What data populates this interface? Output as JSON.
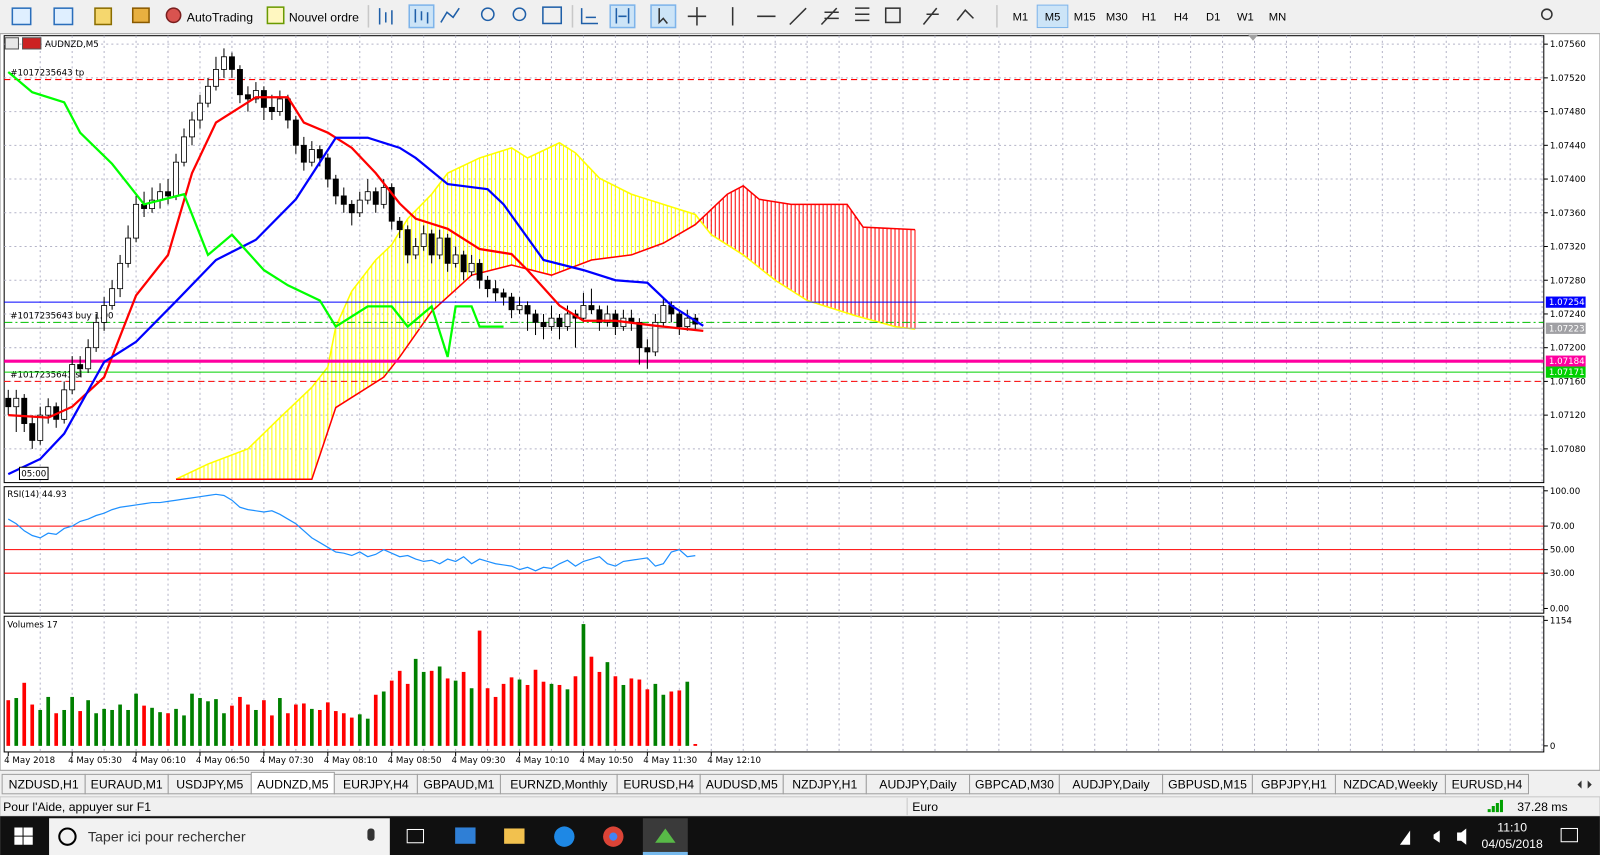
{
  "toolbar": {
    "buttons": [
      "AutoTrading",
      "Nouvel ordre"
    ],
    "timeframes": [
      "M1",
      "M5",
      "M15",
      "M30",
      "H1",
      "H4",
      "D1",
      "W1",
      "MN"
    ],
    "active_timeframe": "M5"
  },
  "chart": {
    "title": "AUDNZD,M5",
    "corner_time": "05:00",
    "ylim": [
      1.0704,
      1.0757
    ],
    "yticks": [
      {
        "value": 1.0756,
        "label": "1.07560"
      },
      {
        "value": 1.0752,
        "label": "1.07520"
      },
      {
        "value": 1.0748,
        "label": "1.07480"
      },
      {
        "value": 1.0744,
        "label": "1.07440"
      },
      {
        "value": 1.074,
        "label": "1.07400"
      },
      {
        "value": 1.0736,
        "label": "1.07360"
      },
      {
        "value": 1.0732,
        "label": "1.07320"
      },
      {
        "value": 1.0728,
        "label": "1.07280"
      },
      {
        "value": 1.0724,
        "label": "1.07240"
      },
      {
        "value": 1.072,
        "label": "1.07200"
      },
      {
        "value": 1.0716,
        "label": "1.07160"
      },
      {
        "value": 1.0712,
        "label": "1.07120"
      },
      {
        "value": 1.0708,
        "label": "1.07080"
      }
    ],
    "grid": true,
    "candles": [
      [
        1.0714,
        1.0715,
        1.0712,
        1.0713
      ],
      [
        1.0713,
        1.0715,
        1.071,
        1.0714
      ],
      [
        1.0714,
        1.07145,
        1.071,
        1.0711
      ],
      [
        1.0711,
        1.0712,
        1.0708,
        1.0709
      ],
      [
        1.0709,
        1.0713,
        1.07085,
        1.0712
      ],
      [
        1.0712,
        1.0714,
        1.0711,
        1.0713
      ],
      [
        1.0713,
        1.07135,
        1.07105,
        1.07115
      ],
      [
        1.07115,
        1.0716,
        1.0711,
        1.0715
      ],
      [
        1.0715,
        1.0719,
        1.07145,
        1.0718
      ],
      [
        1.0718,
        1.0719,
        1.07165,
        1.07175
      ],
      [
        1.07175,
        1.0721,
        1.0717,
        1.072
      ],
      [
        1.072,
        1.0724,
        1.07195,
        1.0723
      ],
      [
        1.0723,
        1.0726,
        1.0722,
        1.0725
      ],
      [
        1.0725,
        1.0728,
        1.07245,
        1.0727
      ],
      [
        1.0727,
        1.0731,
        1.0726,
        1.073
      ],
      [
        1.073,
        1.07345,
        1.07295,
        1.0733
      ],
      [
        1.0733,
        1.0738,
        1.07325,
        1.0737
      ],
      [
        1.0737,
        1.07385,
        1.07355,
        1.07365
      ],
      [
        1.07365,
        1.0739,
        1.0736,
        1.07375
      ],
      [
        1.07375,
        1.07395,
        1.07365,
        1.07385
      ],
      [
        1.07385,
        1.074,
        1.0737,
        1.0738
      ],
      [
        1.0738,
        1.0743,
        1.07375,
        1.0742
      ],
      [
        1.0742,
        1.0746,
        1.07415,
        1.0745
      ],
      [
        1.0745,
        1.0748,
        1.0744,
        1.0747
      ],
      [
        1.0747,
        1.075,
        1.0746,
        1.0749
      ],
      [
        1.0749,
        1.0752,
        1.07485,
        1.0751
      ],
      [
        1.0751,
        1.07545,
        1.07505,
        1.0753
      ],
      [
        1.0753,
        1.07555,
        1.0752,
        1.07545
      ],
      [
        1.07545,
        1.0755,
        1.0752,
        1.0753
      ],
      [
        1.0753,
        1.07535,
        1.0749,
        1.075
      ],
      [
        1.075,
        1.0751,
        1.0748,
        1.07495
      ],
      [
        1.07495,
        1.07515,
        1.0749,
        1.07505
      ],
      [
        1.07505,
        1.0751,
        1.0747,
        1.07485
      ],
      [
        1.07485,
        1.075,
        1.0747,
        1.0748
      ],
      [
        1.0748,
        1.07505,
        1.07475,
        1.07495
      ],
      [
        1.07495,
        1.075,
        1.0746,
        1.0747
      ],
      [
        1.0747,
        1.07475,
        1.0743,
        1.0744
      ],
      [
        1.0744,
        1.0745,
        1.0741,
        1.0742
      ],
      [
        1.0742,
        1.07445,
        1.07415,
        1.07435
      ],
      [
        1.07435,
        1.0744,
        1.07415,
        1.07425
      ],
      [
        1.07425,
        1.0743,
        1.0739,
        1.074
      ],
      [
        1.074,
        1.07405,
        1.0737,
        1.0738
      ],
      [
        1.0738,
        1.0739,
        1.0736,
        1.0737
      ],
      [
        1.0737,
        1.07375,
        1.07345,
        1.0736
      ],
      [
        1.0736,
        1.07385,
        1.07355,
        1.07375
      ],
      [
        1.07375,
        1.074,
        1.0737,
        1.07385
      ],
      [
        1.07385,
        1.0739,
        1.0736,
        1.0737
      ],
      [
        1.0737,
        1.074,
        1.07365,
        1.0739
      ],
      [
        1.0739,
        1.07395,
        1.0734,
        1.0735
      ],
      [
        1.0735,
        1.07355,
        1.0733,
        1.0734
      ],
      [
        1.0734,
        1.07345,
        1.073,
        1.0731
      ],
      [
        1.0731,
        1.0733,
        1.07305,
        1.0732
      ],
      [
        1.0732,
        1.07345,
        1.07315,
        1.07335
      ],
      [
        1.07335,
        1.0734,
        1.073,
        1.0731
      ],
      [
        1.0731,
        1.0734,
        1.07305,
        1.0733
      ],
      [
        1.0733,
        1.07335,
        1.0729,
        1.073
      ],
      [
        1.073,
        1.0732,
        1.07295,
        1.0731
      ],
      [
        1.0731,
        1.07315,
        1.0728,
        1.0729
      ],
      [
        1.0729,
        1.0731,
        1.07285,
        1.073
      ],
      [
        1.073,
        1.07305,
        1.0727,
        1.0728
      ],
      [
        1.0728,
        1.07285,
        1.0726,
        1.0727
      ],
      [
        1.0727,
        1.0728,
        1.07255,
        1.07265
      ],
      [
        1.07265,
        1.0727,
        1.0725,
        1.0726
      ],
      [
        1.0726,
        1.07265,
        1.07235,
        1.07245
      ],
      [
        1.07245,
        1.0726,
        1.0724,
        1.0725
      ],
      [
        1.0725,
        1.07255,
        1.0722,
        1.0724
      ],
      [
        1.0724,
        1.07245,
        1.07215,
        1.0723
      ],
      [
        1.0723,
        1.0724,
        1.0721,
        1.07225
      ],
      [
        1.07225,
        1.0725,
        1.0722,
        1.07235
      ],
      [
        1.07235,
        1.0724,
        1.0721,
        1.07225
      ],
      [
        1.07225,
        1.0725,
        1.0722,
        1.0724
      ],
      [
        1.0724,
        1.07245,
        1.072,
        1.07235
      ],
      [
        1.07235,
        1.07265,
        1.0723,
        1.0725
      ],
      [
        1.0725,
        1.0727,
        1.0724,
        1.07245
      ],
      [
        1.07245,
        1.0725,
        1.0722,
        1.0723
      ],
      [
        1.0723,
        1.0725,
        1.07225,
        1.0724
      ],
      [
        1.0724,
        1.07245,
        1.07215,
        1.07225
      ],
      [
        1.07225,
        1.07245,
        1.0722,
        1.07235
      ],
      [
        1.07235,
        1.07245,
        1.0722,
        1.0723
      ],
      [
        1.0723,
        1.07235,
        1.0718,
        1.072
      ],
      [
        1.072,
        1.0721,
        1.07175,
        1.07195
      ],
      [
        1.07195,
        1.0724,
        1.0719,
        1.0723
      ],
      [
        1.0723,
        1.0726,
        1.07225,
        1.0725
      ],
      [
        1.0725,
        1.07255,
        1.0723,
        1.0724
      ],
      [
        1.0724,
        1.07245,
        1.07215,
        1.07225
      ],
      [
        1.07225,
        1.07245,
        1.0722,
        1.07235
      ],
      [
        1.07235,
        1.0724,
        1.0722,
        1.07228
      ]
    ],
    "lines": [
      {
        "color": "#ff0000",
        "x": [
          0,
          5,
          8,
          12,
          16,
          20,
          23,
          26,
          31,
          35,
          37,
          40,
          43,
          46,
          49,
          51,
          55,
          59,
          63,
          65,
          69,
          72,
          76,
          81,
          87
        ],
        "values": [
          1.0712,
          1.07117,
          1.0713,
          1.07165,
          1.07262,
          1.0731,
          1.07407,
          1.07467,
          1.07497,
          1.07497,
          1.07467,
          1.07455,
          1.07437,
          1.07407,
          1.07371,
          1.07353,
          1.07341,
          1.07317,
          1.07311,
          1.07292,
          1.0725,
          1.07232,
          1.07232,
          1.07226,
          1.0722
        ]
      },
      {
        "color": "#0000ff",
        "x": [
          0,
          4,
          7,
          12,
          16,
          21,
          26,
          31,
          36,
          41,
          45,
          49,
          51,
          55,
          60,
          62,
          67,
          72,
          76,
          80,
          83,
          87
        ],
        "values": [
          1.0705,
          1.07068,
          1.07098,
          1.07183,
          1.07207,
          1.07255,
          1.07304,
          1.07328,
          1.07376,
          1.07449,
          1.07449,
          1.07437,
          1.07425,
          1.07394,
          1.07388,
          1.0737,
          1.07304,
          1.07292,
          1.0728,
          1.07277,
          1.0725,
          1.07226
        ]
      },
      {
        "color": "#00ff00",
        "x": [
          0,
          3,
          7,
          9,
          13,
          17,
          22,
          25,
          28,
          32,
          35,
          39,
          41,
          45,
          48,
          49,
          50,
          53,
          55,
          56,
          58,
          59,
          62
        ],
        "values": [
          1.07527,
          1.07503,
          1.07491,
          1.07455,
          1.07418,
          1.0737,
          1.07382,
          1.0731,
          1.07334,
          1.07292,
          1.07274,
          1.07256,
          1.07225,
          1.07249,
          1.07249,
          1.07237,
          1.07225,
          1.07249,
          1.07189,
          1.07249,
          1.07249,
          1.07225,
          1.07225
        ]
      }
    ],
    "cloud": [
      {
        "color": "#ffff00",
        "x": [
          21,
          25,
          30,
          34,
          38,
          40,
          41,
          43,
          46,
          48,
          50,
          53,
          55,
          59,
          63,
          65,
          69,
          71,
          74,
          78,
          82,
          86,
          88,
          92,
          96,
          100,
          106,
          111,
          113.5
        ],
        "values": [
          1.07044,
          1.07062,
          1.0708,
          1.07117,
          1.07153,
          1.07177,
          1.07225,
          1.07267,
          1.07304,
          1.07322,
          1.07353,
          1.07382,
          1.07407,
          1.07425,
          1.07437,
          1.07425,
          1.07443,
          1.07431,
          1.07401,
          1.07382,
          1.0737,
          1.07358,
          1.07334,
          1.0731,
          1.0728,
          1.07256,
          1.07238,
          1.07225,
          1.07222
        ]
      },
      {
        "color": "#ff0000",
        "x": [
          21,
          38,
          41,
          47,
          49,
          53,
          58,
          63,
          68,
          73,
          78,
          82,
          86,
          90,
          92,
          94,
          98,
          105,
          107,
          113.5
        ],
        "values": [
          1.07044,
          1.07044,
          1.07129,
          1.07165,
          1.07189,
          1.07243,
          1.07286,
          1.07298,
          1.07286,
          1.07304,
          1.0731,
          1.07324,
          1.07346,
          1.07382,
          1.07392,
          1.07376,
          1.0737,
          1.0737,
          1.07343,
          1.0734
        ]
      }
    ],
    "order_lines": [
      {
        "label": "#1017235643 tp",
        "price": 1.07518,
        "color": "#ff0000",
        "dash": "6 4"
      },
      {
        "label": "#1017235643 buy 1.00",
        "price": 1.0723,
        "color": "#00c000",
        "dash": "8 3 2 3"
      },
      {
        "label": "#1017235643 sl",
        "price": 1.0716,
        "color": "#ff0000",
        "dash": "6 4"
      }
    ],
    "price_lines": [
      {
        "value": 1.07254,
        "label": "1.07254",
        "color": "#0000ff"
      },
      {
        "value": 1.07223,
        "label": "1.07223",
        "color": "#a0a0a4"
      },
      {
        "value": 1.07184,
        "label": "1.07184",
        "color": "#ff00a0"
      },
      {
        "value": 1.07171,
        "label": "1.07171",
        "color": "#00d000"
      }
    ],
    "time_labels": [
      "4 May 2018",
      "4 May 05:30",
      "4 May 06:10",
      "4 May 06:50",
      "4 May 07:30",
      "4 May 08:10",
      "4 May 08:50",
      "4 May 09:30",
      "4 May 10:10",
      "4 May 10:50",
      "4 May 11:30",
      "4 May 12:10"
    ],
    "rsi": {
      "label": "RSI(14) 44.93",
      "color": "#1e90ff",
      "level_color": "#ff0000",
      "ylim": [
        -4,
        103.5
      ],
      "yticks": [
        {
          "value": 100,
          "label": "100.00"
        },
        {
          "value": 70,
          "label": "70.00"
        },
        {
          "value": 50,
          "label": "50.00"
        },
        {
          "value": 30,
          "label": "30.00"
        },
        {
          "value": 0,
          "label": "0.00"
        }
      ],
      "levels": [
        70,
        50,
        30
      ],
      "values": [
        76,
        72,
        66,
        62,
        60,
        64,
        63,
        68,
        70,
        74,
        76,
        79,
        81,
        84,
        86,
        87,
        88,
        89,
        90,
        90,
        91,
        92,
        93,
        94,
        95,
        96,
        97,
        96,
        92,
        86,
        84,
        83,
        82,
        83,
        80,
        76,
        72,
        66,
        60,
        56,
        52,
        48,
        47,
        45,
        48,
        44,
        46,
        50,
        47,
        44,
        45,
        42,
        40,
        41,
        38,
        42,
        40,
        44,
        38,
        42,
        40,
        38,
        37,
        36,
        33,
        35,
        32,
        35,
        34,
        38,
        41,
        36,
        40,
        42,
        44,
        38,
        36,
        40,
        41,
        42,
        43,
        36,
        38,
        48,
        50,
        44,
        44.93
      ]
    },
    "volumes": {
      "label": "Volumes 17",
      "up_color": "#008000",
      "down_color": "#ff0000",
      "ylim": [
        -56,
        1192
      ],
      "yticks": [
        1154,
        0
      ],
      "values": [
        420,
        440,
        580,
        380,
        330,
        450,
        300,
        330,
        450,
        320,
        420,
        300,
        340,
        330,
        380,
        330,
        480,
        370,
        350,
        310,
        300,
        340,
        280,
        480,
        440,
        410,
        430,
        300,
        370,
        450,
        380,
        330,
        420,
        280,
        440,
        300,
        380,
        390,
        340,
        330,
        400,
        320,
        300,
        260,
        290,
        250,
        470,
        500,
        600,
        690,
        570,
        800,
        680,
        690,
        730,
        620,
        600,
        680,
        530,
        1060,
        530,
        450,
        570,
        630,
        610,
        560,
        700,
        590,
        570,
        560,
        520,
        640,
        1120,
        820,
        680,
        770,
        640,
        560,
        620,
        610,
        520,
        570,
        470,
        500,
        510,
        590,
        17
      ]
    }
  },
  "tabs": {
    "items": [
      "NZDUSD,H1",
      "EURAUD,M1",
      "USDJPY,M5",
      "AUDNZD,M5",
      "EURJPY,H4",
      "GBPAUD,M1",
      "EURNZD,Monthly",
      "EURUSD,H4",
      "AUDUSD,M5",
      "NZDJPY,H1",
      "AUDJPY,Daily",
      "GBPCAD,M30",
      "AUDJPY,Daily",
      "GBPUSD,M15",
      "GBPJPY,H1",
      "NZDCAD,Weekly",
      "EURUSD,H4"
    ],
    "active": "AUDNZD,M5"
  },
  "status": {
    "help": "Pour l'Aide, appuyer sur F1",
    "profile": "Euro",
    "ping": "37.28 ms"
  },
  "taskbar": {
    "search": "Taper ici pour rechercher",
    "time": "11:10",
    "date": "04/05/2018"
  }
}
